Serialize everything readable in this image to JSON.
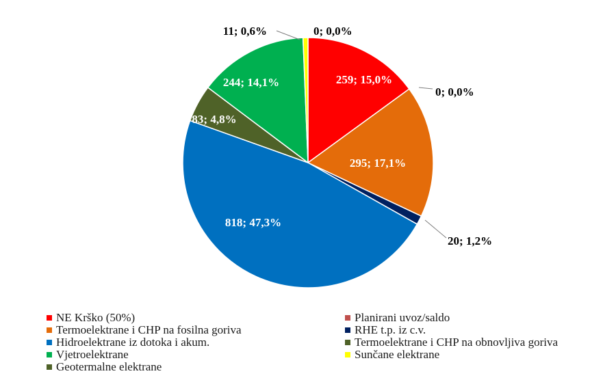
{
  "chart_data": {
    "type": "pie",
    "slices": [
      {
        "label": "NE Krško (50%)",
        "value": 259,
        "percent": "15,0%",
        "data_label": "259; 15,0%",
        "color": "#ff0000",
        "label_color": "#ffffff",
        "label_outside": false
      },
      {
        "label": "Planirani uvoz/saldo",
        "value": 0,
        "percent": "0,0%",
        "data_label": "0; 0,0%",
        "color": "#c0504d",
        "label_color": "#000000",
        "label_outside": true
      },
      {
        "label": "Termoelektrane i CHP na fosilna goriva",
        "value": 295,
        "percent": "17,1%",
        "data_label": "295; 17,1%",
        "color": "#e46c0a",
        "label_color": "#ffffff",
        "label_outside": false
      },
      {
        "label": "RHE t.p. iz c.v.",
        "value": 20,
        "percent": "1,2%",
        "data_label": "20; 1,2%",
        "color": "#002060",
        "label_color": "#000000",
        "label_outside": true
      },
      {
        "label": "Hidroelektrane iz dotoka i akum.",
        "value": 818,
        "percent": "47,3%",
        "data_label": "818; 47,3%",
        "color": "#0070c0",
        "label_color": "#ffffff",
        "label_outside": false
      },
      {
        "label": "Geotermalne elektrane",
        "value": 0,
        "percent": "0,0%",
        "data_label": "",
        "color": "#4f6228",
        "label_color": "#ffffff",
        "label_outside": false
      },
      {
        "label": "Termoelektrane i CHP na obnovljiva goriva",
        "value": 83,
        "percent": "4,8%",
        "data_label": "83; 4,8%",
        "color": "#4f6228",
        "label_color": "#ffffff",
        "label_outside": false
      },
      {
        "label": "Vjetroelektrane",
        "value": 244,
        "percent": "14,1%",
        "data_label": "244; 14,1%",
        "color": "#00b050",
        "label_color": "#ffffff",
        "label_outside": false
      },
      {
        "label": "Sunčane elektrane",
        "value": 11,
        "percent": "0,6%",
        "data_label": "11; 0,6%",
        "color": "#ffff00",
        "label_color": "#000000",
        "label_outside": true
      },
      {
        "label": "",
        "value": 0,
        "percent": "0,0%",
        "data_label": "0; 0,0%",
        "color": "#ffffff",
        "label_color": "#000000",
        "label_outside": true
      }
    ],
    "legend_position": "bottom",
    "legend": [
      {
        "label": "NE Krško (50%)",
        "color": "#ff0000"
      },
      {
        "label": "Planirani uvoz/saldo",
        "color": "#c0504d"
      },
      {
        "label": "Termoelektrane i CHP na fosilna goriva",
        "color": "#e46c0a"
      },
      {
        "label": "RHE t.p. iz c.v.",
        "color": "#002060"
      },
      {
        "label": "Hidroelektrane iz dotoka i akum.",
        "color": "#0070c0"
      },
      {
        "label": "Termoelektrane i CHP na obnovljiva goriva",
        "color": "#4f6228"
      },
      {
        "label": "Vjetroelektrane",
        "color": "#00b050"
      },
      {
        "label": "Sunčane elektrane",
        "color": "#ffff00"
      },
      {
        "label": "Geotermalne elektrane",
        "color": "#4f6228"
      }
    ]
  }
}
